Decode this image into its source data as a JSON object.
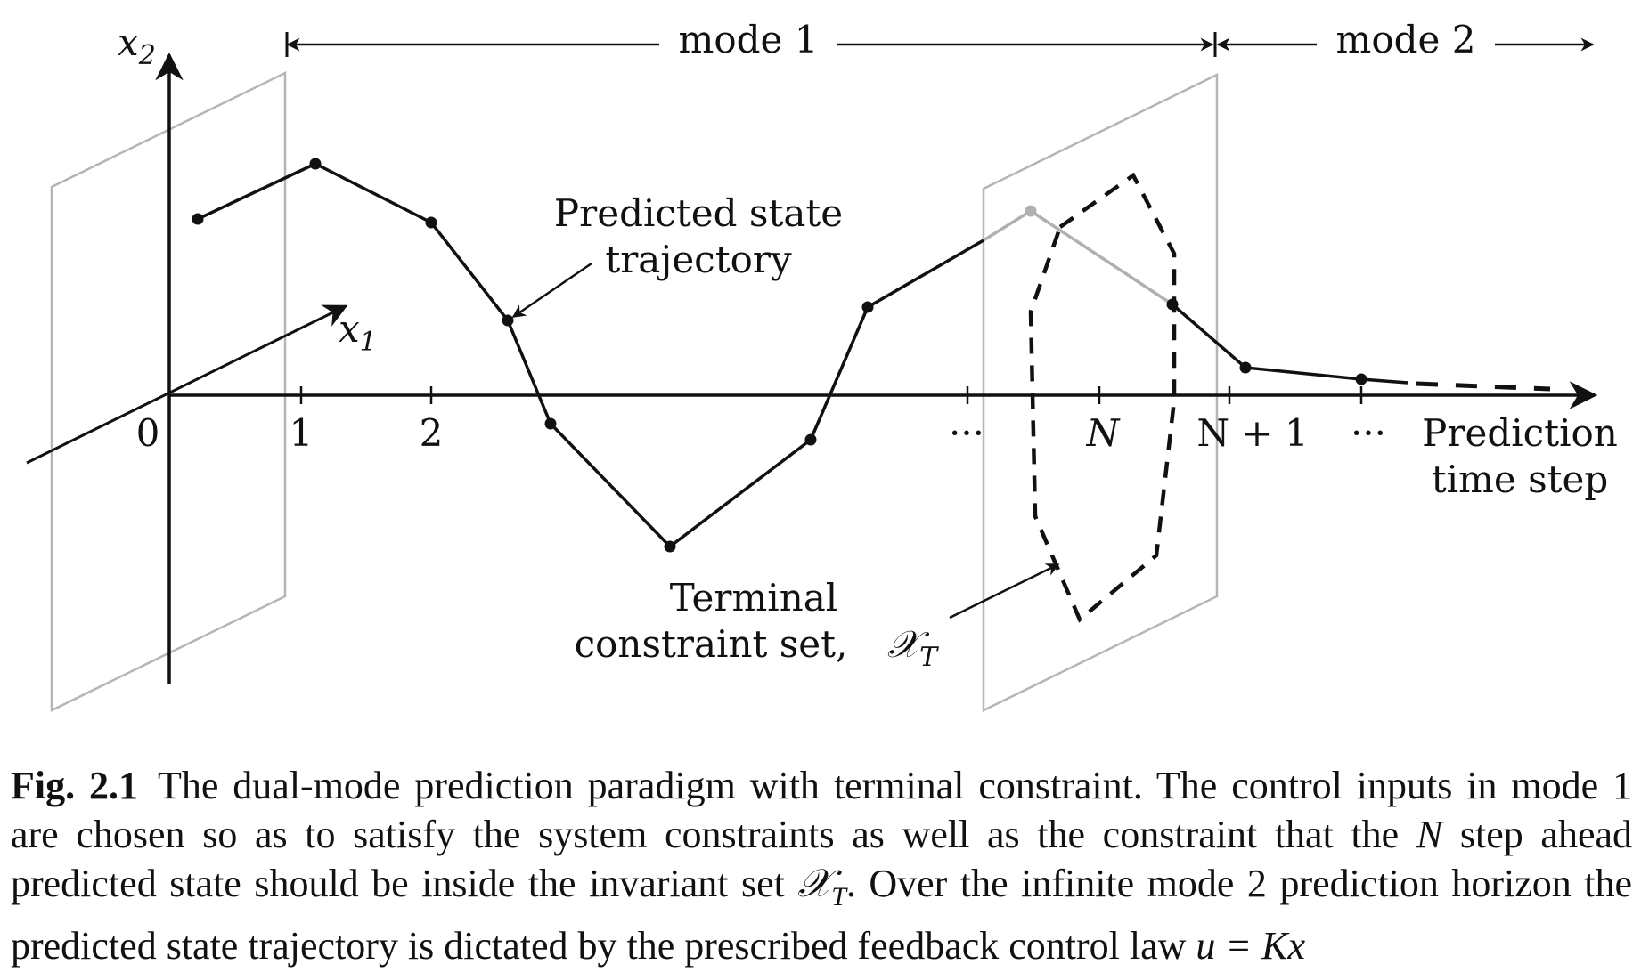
{
  "diagram": {
    "mode1_label": "mode 1",
    "mode2_label": "mode 2",
    "x2_label": "x",
    "x2_sub": "2",
    "x1_label": "x",
    "x1_sub": "1",
    "ticks": [
      "0",
      "1",
      "2",
      "···",
      "N",
      "N + 1",
      "···"
    ],
    "axis_label_line1": "Prediction",
    "axis_label_line2": "time step",
    "trajectory_label_line1": "Predicted state",
    "trajectory_label_line2": "trajectory",
    "terminal_label_line1": "Terminal",
    "terminal_label_line2": "constraint set,",
    "terminal_symbol": "𝒳",
    "terminal_symbol_sub": "T"
  },
  "caption": {
    "figure_number": "Fig. 2.1",
    "part1": "The dual-mode prediction paradigm with terminal constraint. The control inputs in mode 1 are chosen so as to satisfy the system constraints as well as the constraint that the ",
    "N": "N",
    "part2": " step ahead predicted state should be inside the invariant set ",
    "set_symbol": "𝒳",
    "set_sub": "T",
    "part3": ". Over the infinite mode 2 prediction horizon the predicted state trajectory is dictated by the prescribed feedback control law ",
    "law": "u = Kx"
  }
}
